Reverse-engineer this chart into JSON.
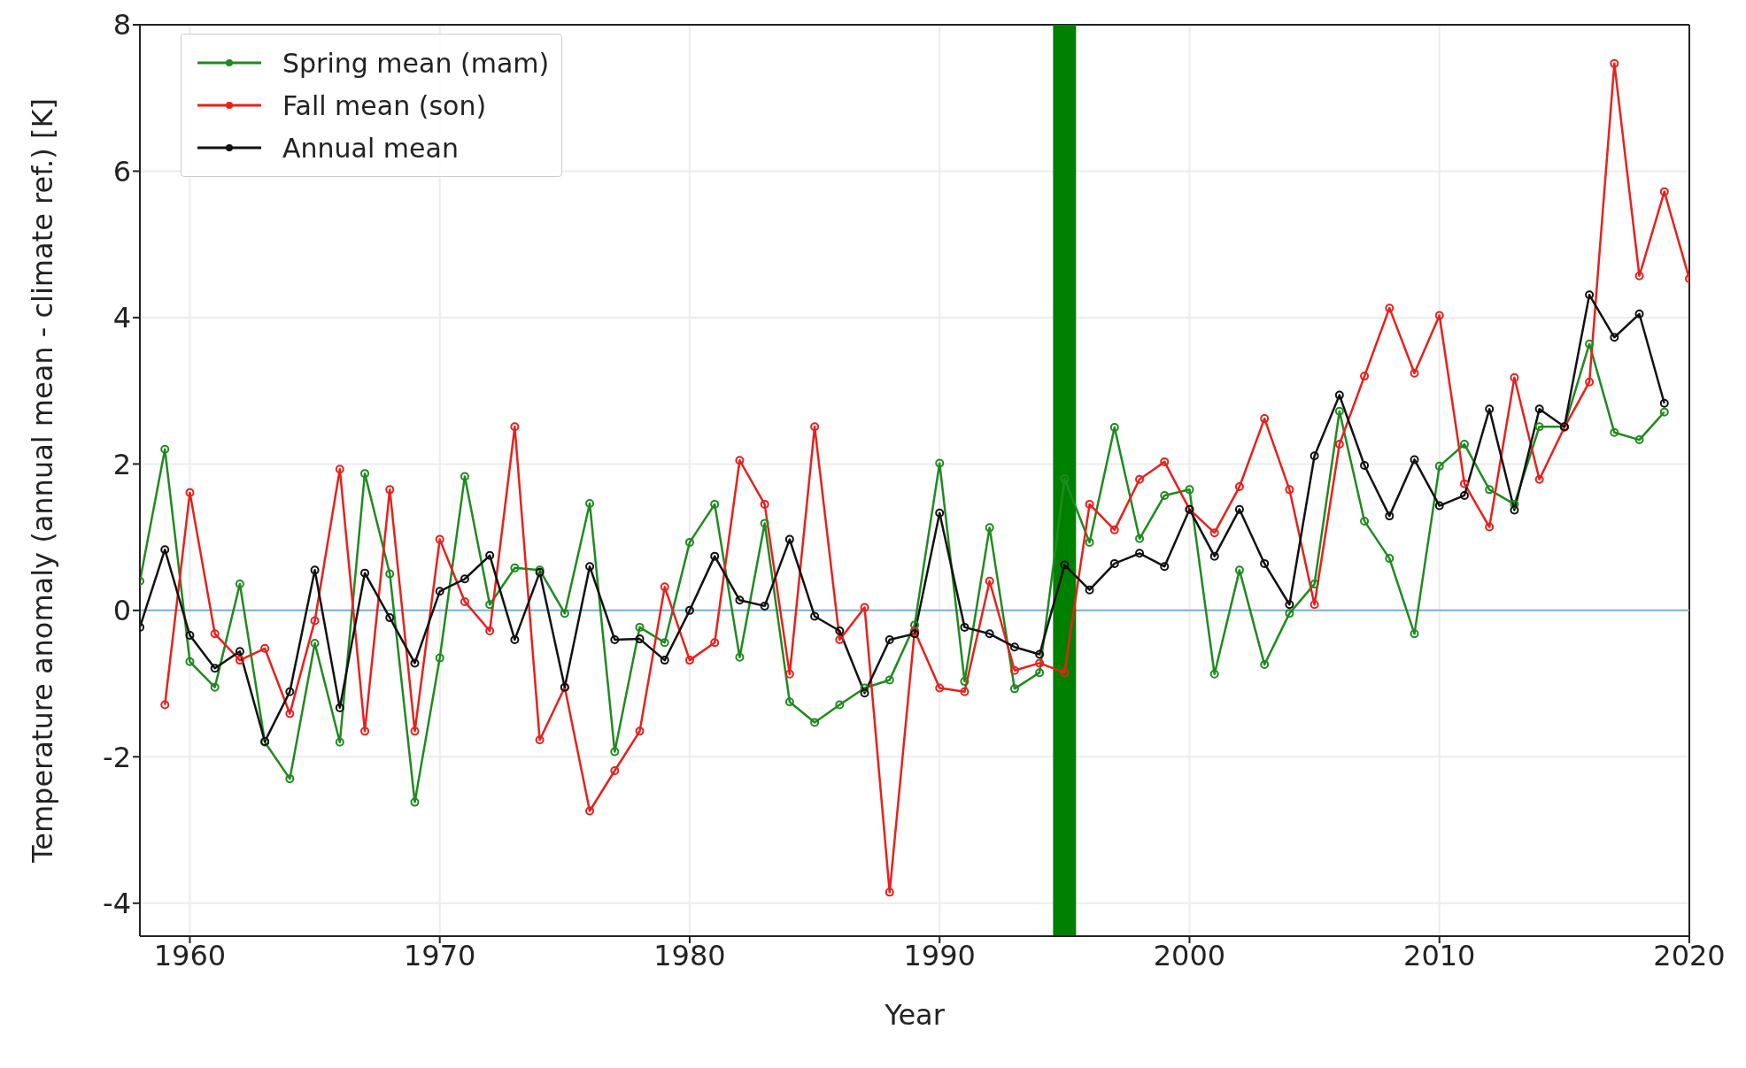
{
  "chart_data": {
    "type": "line",
    "xlabel": "Year",
    "ylabel": "Temperature anomaly (annual mean - climate ref.) [K]",
    "x": [
      1958,
      1959,
      1960,
      1961,
      1962,
      1963,
      1964,
      1965,
      1966,
      1967,
      1968,
      1969,
      1970,
      1971,
      1972,
      1973,
      1974,
      1975,
      1976,
      1977,
      1978,
      1979,
      1980,
      1981,
      1982,
      1983,
      1984,
      1985,
      1986,
      1987,
      1988,
      1989,
      1990,
      1991,
      1992,
      1993,
      1994,
      1995,
      1996,
      1997,
      1998,
      1999,
      2000,
      2001,
      2002,
      2003,
      2004,
      2005,
      2006,
      2007,
      2008,
      2009,
      2010,
      2011,
      2012,
      2013,
      2014,
      2015,
      2016,
      2017,
      2018,
      2019,
      2020
    ],
    "series": [
      {
        "name": "Spring mean (mam)",
        "color": "#1f8a1f",
        "values": [
          0.4,
          2.2,
          -0.7,
          -1.05,
          0.36,
          -1.8,
          -2.3,
          -0.45,
          -1.8,
          1.87,
          0.5,
          -2.62,
          -0.65,
          1.83,
          0.08,
          0.58,
          0.55,
          -0.04,
          1.46,
          -1.93,
          -0.23,
          -0.44,
          0.93,
          1.45,
          -0.64,
          1.19,
          -1.25,
          -1.53,
          -1.29,
          -1.06,
          -0.95,
          -0.2,
          2.01,
          -0.97,
          1.13,
          -1.07,
          -0.85,
          1.8,
          0.93,
          2.5,
          0.98,
          1.57,
          1.65,
          -0.87,
          0.55,
          -0.74,
          -0.04,
          0.36,
          2.72,
          1.22,
          0.71,
          -0.32,
          1.97,
          2.27,
          1.65,
          1.45,
          2.51,
          2.51,
          3.64,
          2.43,
          2.33,
          2.71,
          null
        ]
      },
      {
        "name": "Fall mean (son)",
        "color": "#e8201c",
        "values": [
          null,
          -1.29,
          1.61,
          -0.32,
          -0.68,
          -0.52,
          -1.41,
          -0.14,
          1.93,
          -1.65,
          1.65,
          -1.65,
          0.97,
          0.12,
          -0.28,
          2.51,
          -1.77,
          -1.05,
          -2.74,
          -2.19,
          -1.65,
          0.32,
          -0.68,
          -0.44,
          2.05,
          1.45,
          -0.87,
          2.51,
          -0.4,
          0.04,
          -3.85,
          -0.28,
          -1.06,
          -1.11,
          0.4,
          -0.82,
          -0.72,
          -0.85,
          1.45,
          1.1,
          1.79,
          2.03,
          1.38,
          1.06,
          1.69,
          2.62,
          1.65,
          0.08,
          2.27,
          3.2,
          4.13,
          3.24,
          4.03,
          1.73,
          1.14,
          3.18,
          1.79,
          2.5,
          3.12,
          7.47,
          4.57,
          5.72,
          4.53
        ]
      },
      {
        "name": "Annual mean",
        "color": "#111111",
        "values": [
          -0.23,
          0.83,
          -0.34,
          -0.79,
          -0.56,
          -1.79,
          -1.11,
          0.55,
          -1.33,
          0.51,
          -0.1,
          -0.72,
          0.26,
          0.43,
          0.75,
          -0.4,
          0.52,
          -1.05,
          0.6,
          -0.4,
          -0.39,
          -0.68,
          0,
          0.74,
          0.14,
          0.06,
          0.97,
          -0.08,
          -0.28,
          -1.13,
          -0.4,
          -0.32,
          1.33,
          -0.23,
          -0.32,
          -0.5,
          -0.6,
          0.62,
          0.28,
          0.64,
          0.78,
          0.6,
          1.38,
          0.74,
          1.38,
          0.64,
          0.08,
          2.11,
          2.94,
          1.98,
          1.29,
          2.06,
          1.43,
          1.57,
          2.75,
          1.37,
          2.75,
          2.51,
          4.31,
          3.73,
          4.05,
          2.83,
          null
        ]
      }
    ],
    "xlim": [
      1958,
      2020
    ],
    "xticks": [
      1960,
      1970,
      1980,
      1990,
      2000,
      2010,
      2020
    ],
    "ylim": [
      -4.45,
      8
    ],
    "yticks": [
      -4,
      -2,
      0,
      2,
      4,
      6,
      8
    ],
    "ref_lines": [
      {
        "axis": "y",
        "value": 0,
        "color": "#7fb0cc"
      },
      {
        "axis": "x",
        "value": 1995,
        "color": "#008000"
      }
    ],
    "grid": true,
    "legend": "top left",
    "marker": "circle"
  }
}
